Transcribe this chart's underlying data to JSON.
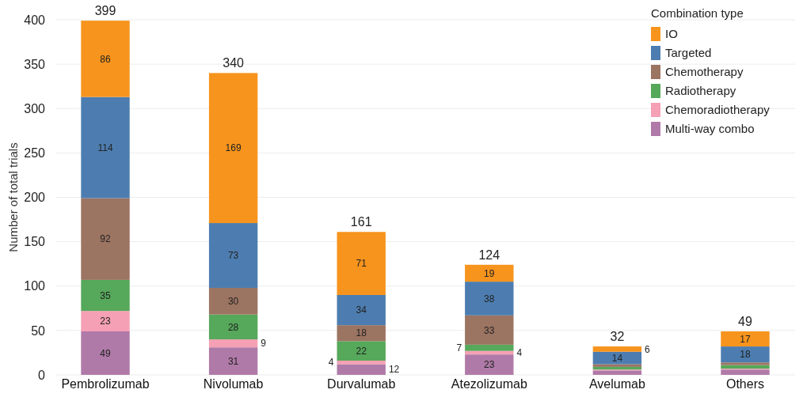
{
  "chart_data": {
    "type": "bar",
    "stacked": true,
    "ylabel": "Number of total trials",
    "legend_title": "Combination type",
    "legend": "top right",
    "grid": "y",
    "categories": [
      "Pembrolizumab",
      "Nivolumab",
      "Durvalumab",
      "Atezolizumab",
      "Avelumab",
      "Others"
    ],
    "ylim": [
      0,
      400
    ],
    "yticks": [
      0,
      50,
      100,
      150,
      200,
      250,
      300,
      350,
      400
    ],
    "series": [
      {
        "name": "Multi-way combo",
        "color": "#b07aa8",
        "values": [
          49,
          31,
          12,
          23,
          5,
          6
        ],
        "value_labels": [
          "49",
          "31",
          "12",
          "23",
          null,
          null
        ]
      },
      {
        "name": "Chemoradiotherapy",
        "color": "#f5a0b4",
        "values": [
          23,
          9,
          4,
          4,
          1,
          1
        ],
        "value_labels": [
          "23",
          "9",
          "4",
          "4",
          null,
          null
        ]
      },
      {
        "name": "Radiotherapy",
        "color": "#56a85a",
        "values": [
          35,
          28,
          22,
          7,
          3,
          4
        ],
        "value_labels": [
          "35",
          "28",
          "22",
          "7",
          null,
          null
        ]
      },
      {
        "name": "Chemotherapy",
        "color": "#9c7462",
        "values": [
          92,
          30,
          18,
          33,
          3,
          3
        ],
        "value_labels": [
          "92",
          "30",
          "18",
          "33",
          null,
          null
        ]
      },
      {
        "name": "Targeted",
        "color": "#4d7db0",
        "values": [
          114,
          73,
          34,
          38,
          14,
          18
        ],
        "value_labels": [
          "114",
          "73",
          "34",
          "38",
          "14",
          "18"
        ]
      },
      {
        "name": "IO",
        "color": "#f7941d",
        "values": [
          86,
          169,
          71,
          19,
          6,
          17
        ],
        "value_labels": [
          "86",
          "169",
          "71",
          "19",
          "6",
          "17"
        ]
      }
    ],
    "totals": [
      "399",
      "340",
      "161",
      "124",
      "32",
      "49"
    ]
  }
}
